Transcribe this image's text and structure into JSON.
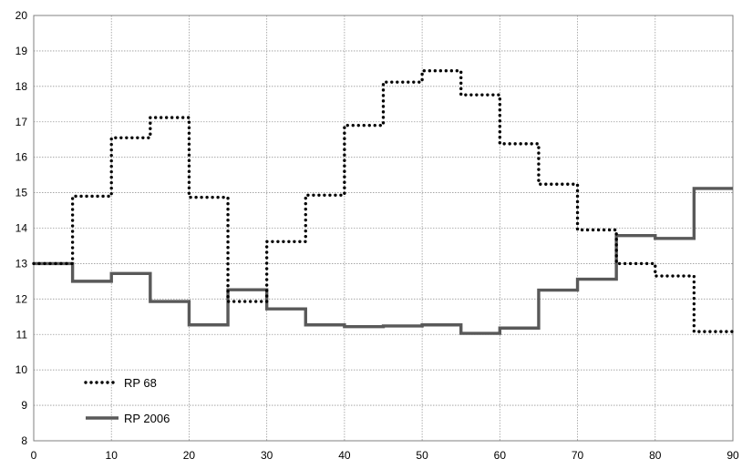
{
  "chart_data": {
    "type": "line",
    "step": true,
    "xlim": [
      0,
      90
    ],
    "ylim": [
      8,
      20
    ],
    "x_ticks": [
      0,
      10,
      20,
      30,
      40,
      50,
      60,
      70,
      80,
      90
    ],
    "y_ticks": [
      8,
      9,
      10,
      11,
      12,
      13,
      14,
      15,
      16,
      17,
      18,
      19,
      20
    ],
    "grid": true,
    "legend_position": "bottom-left",
    "series": [
      {
        "name": "RP 68",
        "style": "dotted",
        "color": "#000000",
        "x": [
          0,
          5,
          10,
          15,
          20,
          25,
          30,
          35,
          40,
          45,
          50,
          55,
          60,
          65,
          70,
          75,
          80,
          85,
          90
        ],
        "values": [
          13.0,
          14.9,
          16.55,
          17.12,
          14.87,
          11.93,
          13.62,
          14.93,
          16.9,
          18.12,
          18.44,
          17.76,
          16.38,
          15.24,
          13.95,
          13.0,
          12.65,
          11.08,
          11.08
        ]
      },
      {
        "name": "RP 2006",
        "style": "solid",
        "color": "#595959",
        "x": [
          0,
          5,
          10,
          15,
          20,
          25,
          30,
          35,
          40,
          45,
          50,
          55,
          60,
          65,
          70,
          75,
          80,
          85,
          90
        ],
        "values": [
          13.0,
          12.5,
          12.72,
          11.93,
          11.27,
          12.26,
          11.72,
          11.27,
          11.22,
          11.24,
          11.27,
          11.03,
          11.18,
          12.25,
          12.56,
          13.79,
          13.71,
          15.12,
          15.12
        ]
      }
    ]
  }
}
